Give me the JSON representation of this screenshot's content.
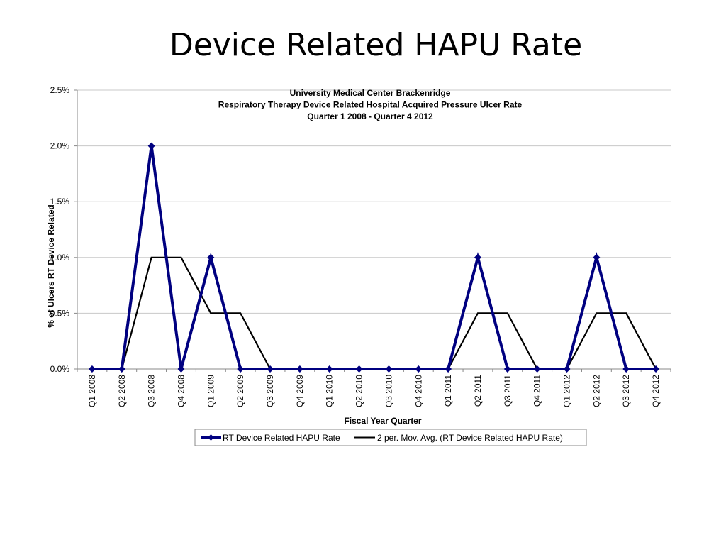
{
  "slide": {
    "title": "Device Related HAPU Rate"
  },
  "chart_data": {
    "type": "line",
    "title_lines": [
      "University Medical Center Brackenridge",
      "Respiratory Therapy Device Related Hospital Acquired Pressure Ulcer Rate",
      "Quarter 1 2008 - Quarter 4 2012"
    ],
    "xlabel": "Fiscal Year Quarter",
    "ylabel": "% of Ulcers RT Device Related",
    "categories": [
      "Q1 2008",
      "Q2 2008",
      "Q3 2008",
      "Q4 2008",
      "Q1 2009",
      "Q2 2009",
      "Q3 2009",
      "Q4 2009",
      "Q1 2010",
      "Q2 2010",
      "Q3 2010",
      "Q4 2010",
      "Q1 2011",
      "Q2 2011",
      "Q3 2011",
      "Q4 2011",
      "Q1 2012",
      "Q2 2012",
      "Q3 2012",
      "Q4 2012"
    ],
    "y_ticks": [
      "0.0%",
      "0.5%",
      "1.0%",
      "1.5%",
      "2.0%",
      "2.5%"
    ],
    "ylim": [
      0,
      2.5
    ],
    "grid": true,
    "legend_position": "bottom",
    "series": [
      {
        "name": "RT Device Related HAPU Rate",
        "color": "#000080",
        "marker": "diamond",
        "values": [
          0,
          0,
          2.0,
          0,
          1.0,
          0,
          0,
          0,
          0,
          0,
          0,
          0,
          0,
          1.0,
          0,
          0,
          0,
          1.0,
          0,
          0
        ]
      },
      {
        "name": "2 per. Mov. Avg. (RT Device Related HAPU Rate)",
        "color": "#000000",
        "marker": "none",
        "values": [
          null,
          0,
          1.0,
          1.0,
          0.5,
          0.5,
          0,
          0,
          0,
          0,
          0,
          0,
          0,
          0.5,
          0.5,
          0,
          0,
          0.5,
          0.5,
          0
        ]
      }
    ]
  }
}
